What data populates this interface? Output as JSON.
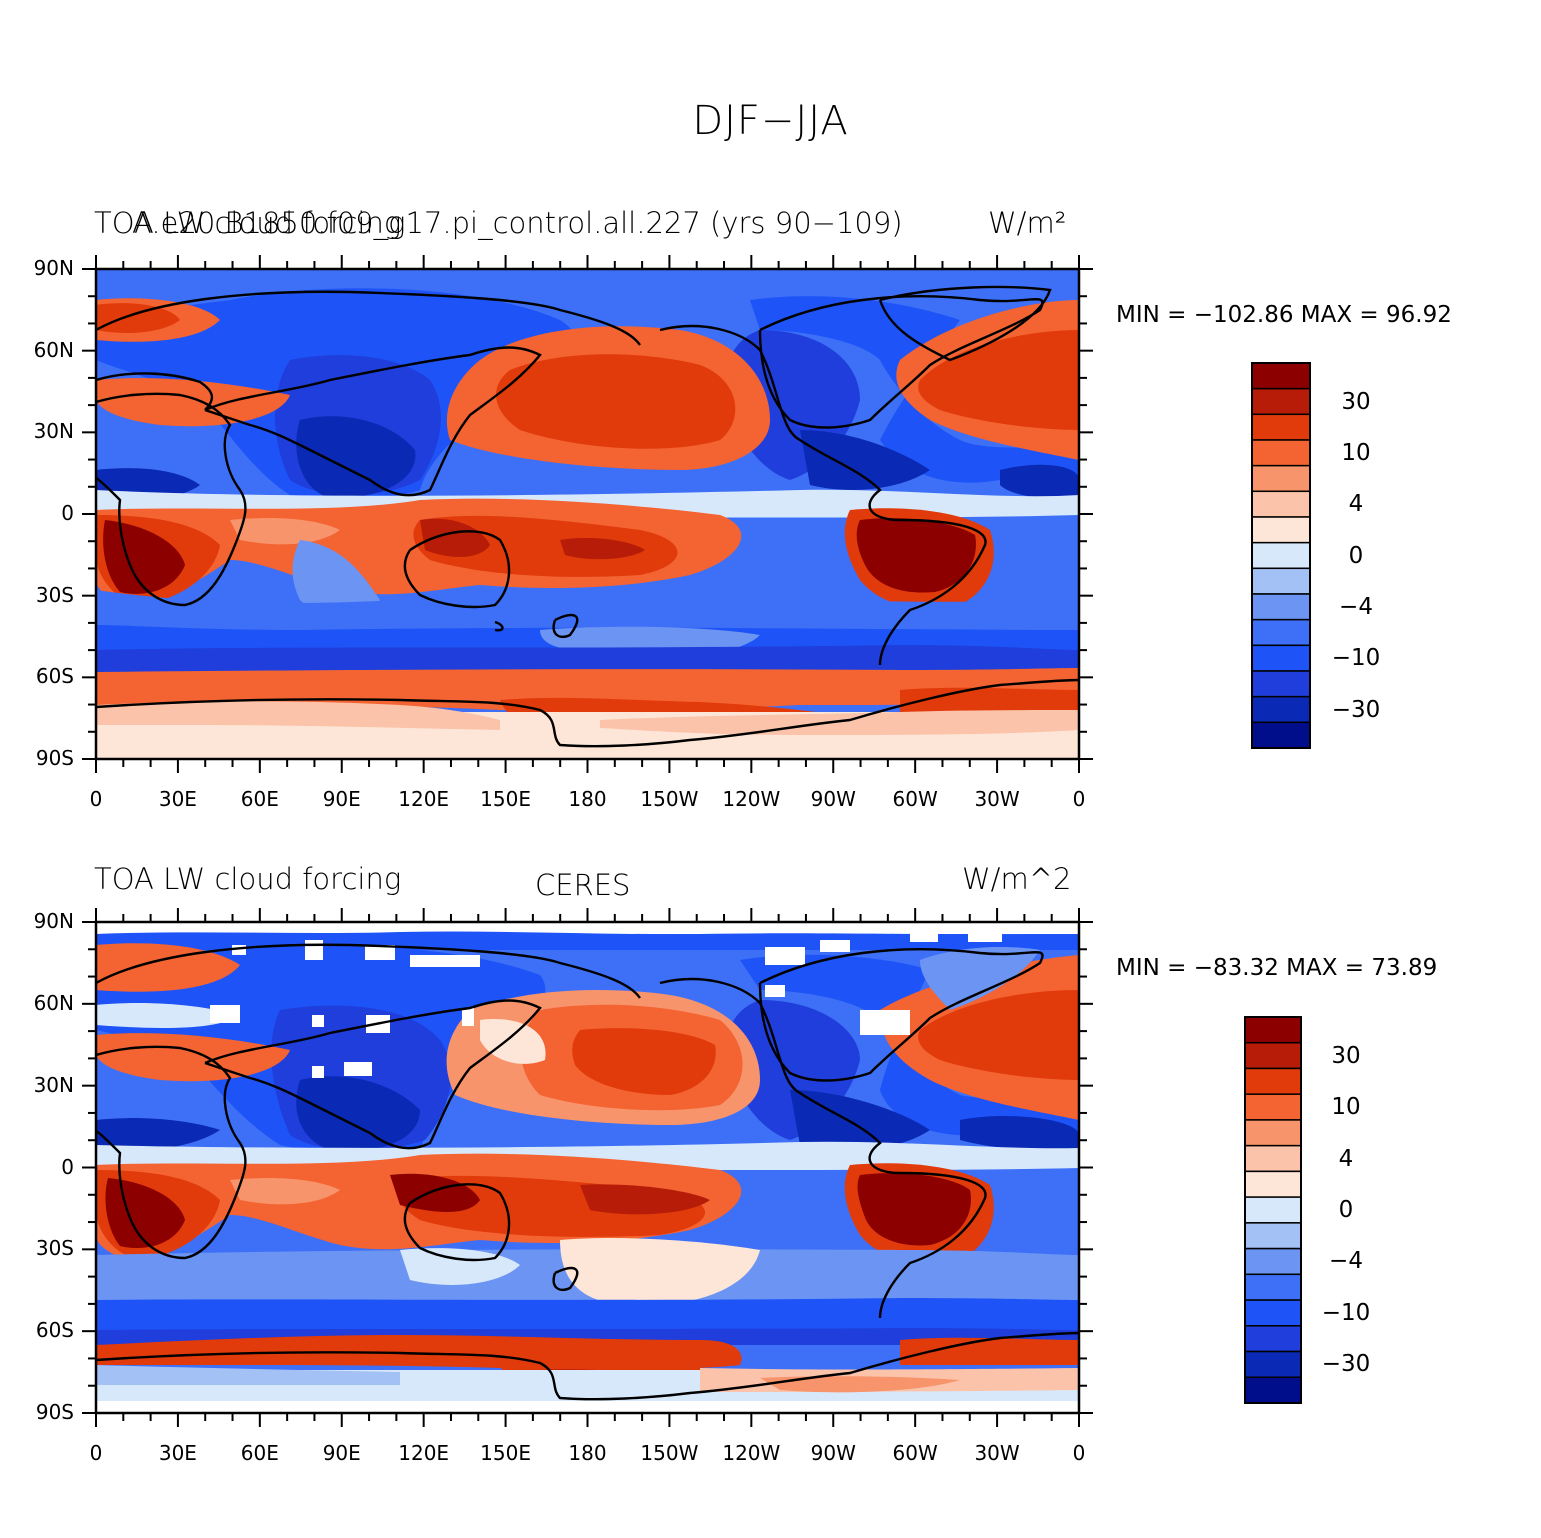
{
  "title": "DJF−JJA",
  "colors": {
    "scale": [
      "#000e8c",
      "#0a29b4",
      "#1f3edb",
      "#1e54f7",
      "#3d70f6",
      "#6b94f3",
      "#a3c1f5",
      "#d8e8fb",
      "#fde6d7",
      "#fbc3aa",
      "#f7946b",
      "#f46332",
      "#e13a0b",
      "#b61c07",
      "#8c0000"
    ],
    "continent": "#000000"
  },
  "panels": [
    {
      "left_label": "TOA LW cloud forcing",
      "overlay_label": "A.e20.B1850.f09_g17.pi_control.all.227 (yrs 90−109)",
      "units": "W/m²",
      "center_label": "",
      "min_max": "MIN = −102.86  MAX =   96.92"
    },
    {
      "left_label": "TOA LW cloud forcing",
      "overlay_label": "",
      "units": "W/m^2",
      "center_label": "CERES",
      "min_max": "MIN = −83.32  MAX =   73.89"
    }
  ],
  "axes": {
    "lat_labels": [
      "90N",
      "60N",
      "30N",
      "0",
      "30S",
      "60S",
      "90S"
    ],
    "lon_labels": [
      "0",
      "30E",
      "60E",
      "90E",
      "120E",
      "150E",
      "180",
      "150W",
      "120W",
      "90W",
      "60W",
      "30W",
      "0"
    ]
  },
  "colorbar": {
    "labels": [
      "30",
      "10",
      "4",
      "0",
      "−4",
      "−10",
      "−30"
    ]
  }
}
